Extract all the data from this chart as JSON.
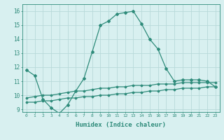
{
  "xlabel": "Humidex (Indice chaleur)",
  "x_values": [
    0,
    1,
    2,
    3,
    4,
    5,
    6,
    7,
    8,
    9,
    10,
    11,
    12,
    13,
    14,
    15,
    16,
    17,
    18,
    19,
    20,
    21,
    22,
    23
  ],
  "line1_y": [
    11.8,
    11.4,
    9.7,
    9.1,
    8.7,
    9.3,
    10.3,
    11.2,
    13.1,
    15.0,
    15.3,
    15.8,
    15.9,
    16.0,
    15.1,
    14.0,
    13.3,
    11.9,
    11.0,
    11.1,
    11.1,
    11.1,
    11.0,
    10.6
  ],
  "line2_y": [
    9.8,
    9.9,
    10.0,
    10.0,
    10.1,
    10.2,
    10.3,
    10.3,
    10.4,
    10.5,
    10.5,
    10.6,
    10.6,
    10.7,
    10.7,
    10.7,
    10.8,
    10.8,
    10.8,
    10.9,
    10.9,
    10.9,
    10.9,
    10.9
  ],
  "line3_y": [
    9.5,
    9.5,
    9.6,
    9.6,
    9.7,
    9.8,
    9.8,
    9.9,
    9.9,
    10.0,
    10.0,
    10.1,
    10.1,
    10.2,
    10.2,
    10.3,
    10.3,
    10.4,
    10.4,
    10.5,
    10.5,
    10.5,
    10.6,
    10.6
  ],
  "line_color": "#2e8b7a",
  "bg_color": "#d8f0f0",
  "grid_color": "#b8dada",
  "ylim": [
    8.8,
    16.5
  ],
  "yticks": [
    9,
    10,
    11,
    12,
    13,
    14,
    15,
    16
  ],
  "xlim": [
    -0.5,
    23.5
  ]
}
